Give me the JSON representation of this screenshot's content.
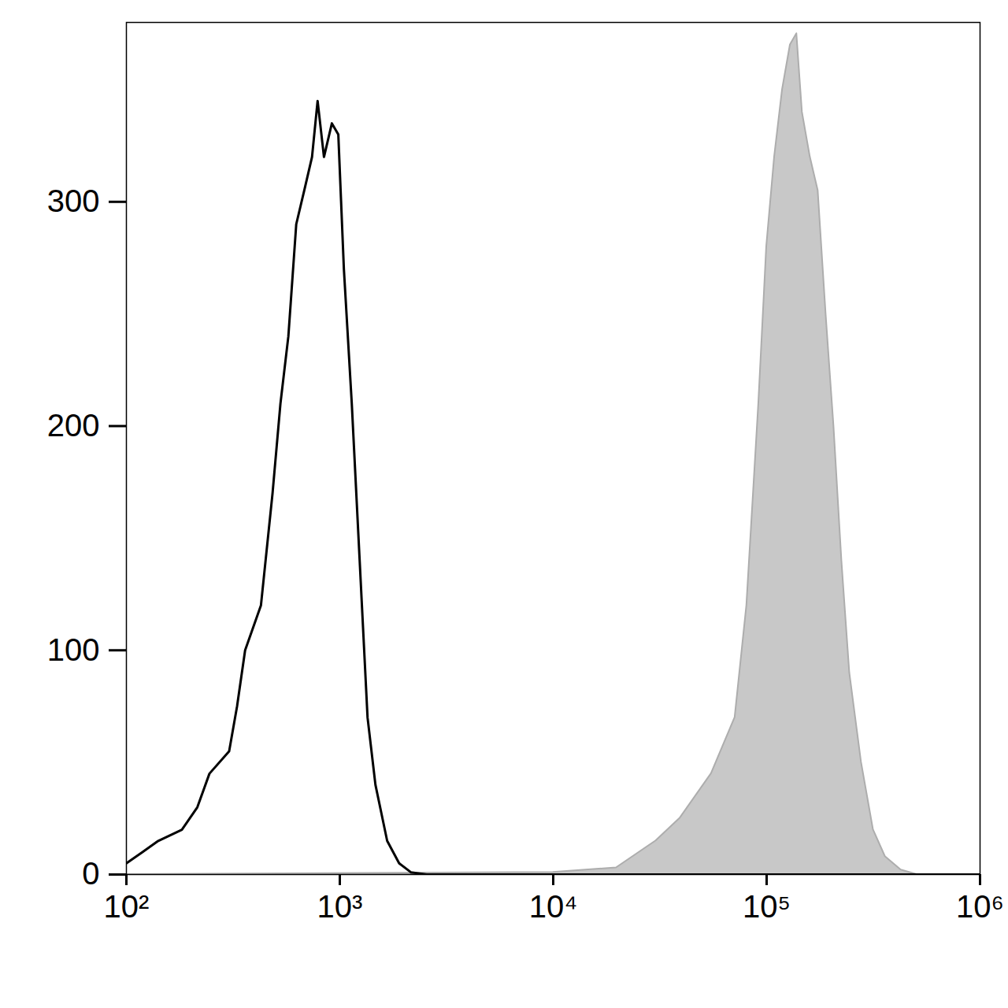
{
  "chart_data": {
    "type": "histogram",
    "log": "x",
    "xlim": [
      100,
      1000000
    ],
    "xticks": [
      {
        "value": 100,
        "label": "10²"
      },
      {
        "value": 1000,
        "label": "10³"
      },
      {
        "value": 10000,
        "label": "10⁴"
      },
      {
        "value": 100000,
        "label": "10⁵"
      },
      {
        "value": 1000000,
        "label": "10⁶"
      }
    ],
    "ylim": [
      0,
      380
    ],
    "yticks": [
      0,
      100,
      200,
      300
    ],
    "series": [
      {
        "type": "area",
        "color": "#c8c8c8",
        "x": [
          100,
          10000,
          19770,
          30300,
          39200,
          55100,
          71100,
          80700,
          91800,
          100000,
          108900,
          118600,
          129100,
          138400,
          146900,
          160000,
          174200,
          189700,
          206500,
          224900,
          244900,
          278000,
          316200,
          359700,
          426600,
          505800,
          1000000
        ],
        "values": [
          0,
          1,
          3,
          15,
          25,
          45,
          70,
          120,
          210,
          280,
          320,
          350,
          370,
          375,
          340,
          320,
          305,
          250,
          200,
          140,
          90,
          50,
          20,
          8,
          2,
          0,
          0
        ]
      },
      {
        "type": "line",
        "color": "#000000",
        "x": [
          100,
          119,
          141,
          182,
          215,
          245,
          303,
          330,
          360,
          427,
          484,
          527,
          574,
          625,
          681,
          741,
          787,
          843,
          918,
          984,
          1045,
          1138,
          1239,
          1349,
          1469,
          1667,
          1897,
          2153,
          2553,
          1000000
        ],
        "values": [
          5,
          10,
          15,
          20,
          30,
          45,
          55,
          75,
          100,
          120,
          170,
          210,
          240,
          290,
          305,
          320,
          345,
          320,
          335,
          330,
          270,
          210,
          140,
          70,
          40,
          15,
          5,
          1,
          0,
          0
        ]
      }
    ]
  }
}
